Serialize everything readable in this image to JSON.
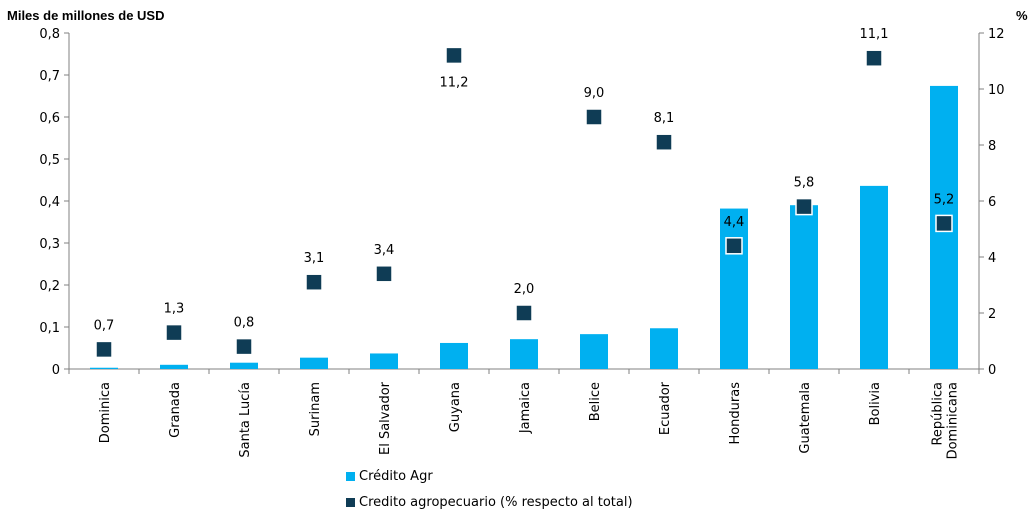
{
  "chart_data": {
    "type": "bar",
    "categories": [
      "Dominica",
      "Granada",
      "Santa Lucía",
      "Surinam",
      "El Salvador",
      "Guyana",
      "Jamaica",
      "Belice",
      "Ecuador",
      "Honduras",
      "Guatemala",
      "Bolivia",
      "República Dominicana"
    ],
    "y_left_label": "Miles de millones de USD",
    "y_right_label": "%",
    "y_left_ticks": [
      "0",
      "0,1",
      "0,2",
      "0,3",
      "0,4",
      "0,5",
      "0,6",
      "0,7",
      "0,8"
    ],
    "y_right_ticks": [
      "0",
      "2",
      "4",
      "6",
      "8",
      "10",
      "12"
    ],
    "ylim_left": [
      0,
      0.8
    ],
    "ylim_right": [
      0,
      12
    ],
    "grid": false,
    "legend_position": "bottom",
    "series": [
      {
        "name": "Crédito Agr",
        "kind": "bar",
        "axis": "left",
        "color": "#00b0f0",
        "values": [
          0.003,
          0.01,
          0.015,
          0.027,
          0.037,
          0.062,
          0.071,
          0.083,
          0.097,
          0.382,
          0.39,
          0.436,
          0.674
        ]
      },
      {
        "name": "Credito agropecuario (% respecto al total)",
        "kind": "scatter",
        "axis": "right",
        "color": "#0f3c55",
        "values": [
          0.7,
          1.3,
          0.8,
          3.1,
          3.4,
          11.2,
          2.0,
          9.0,
          8.1,
          4.4,
          5.8,
          11.1,
          5.2
        ],
        "labels": [
          "0,7",
          "1,3",
          "0,8",
          "3,1",
          "3,4",
          "11,2",
          "2,0",
          "9,0",
          "8,1",
          "4,4",
          "5,8",
          "11,1",
          "5,2"
        ],
        "label_position": [
          "above",
          "above",
          "above",
          "above",
          "above",
          "below",
          "above",
          "above",
          "above",
          "above",
          "above",
          "above",
          "above"
        ]
      }
    ]
  }
}
